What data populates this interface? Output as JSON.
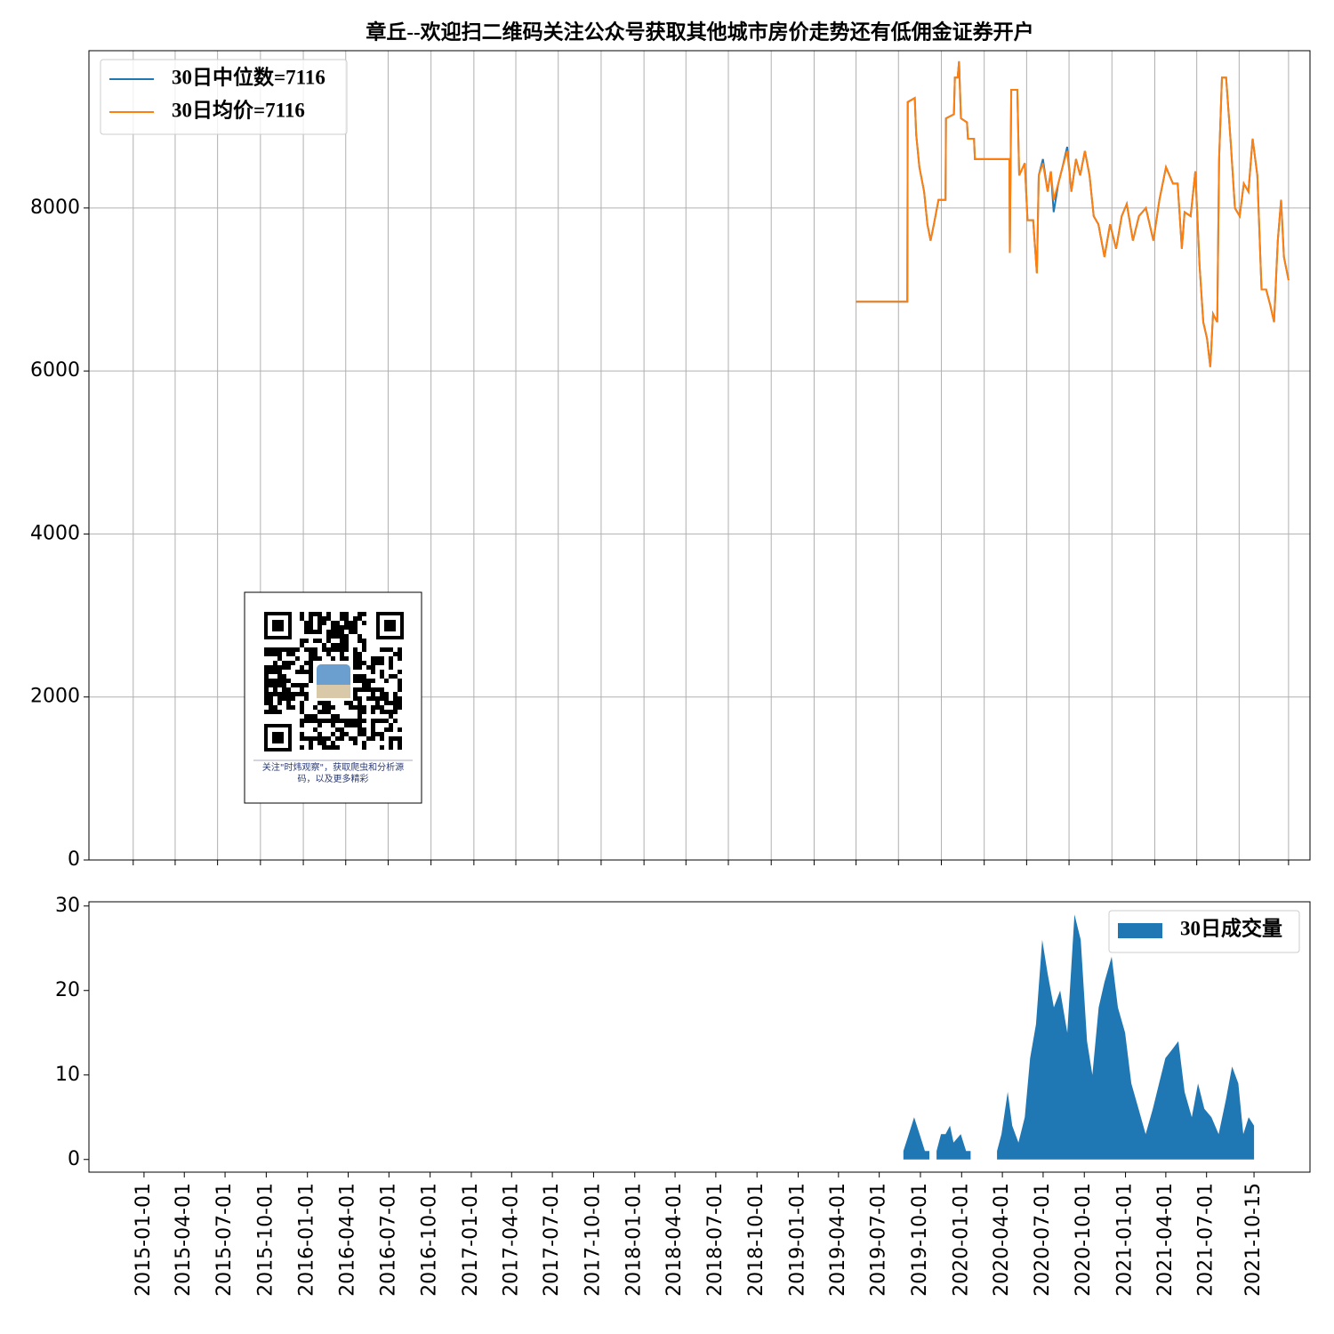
{
  "chart_data": [
    {
      "type": "line",
      "title": "章丘--欢迎扫二维码关注公众号获取其他城市房价走势还有低佣金证券开户",
      "annotation": "关注\"时炜观察\"，获取爬虫和分析源码，以及更多精彩",
      "x": [
        "2019-04-01",
        "2019-07-20",
        "2019-07-21",
        "2019-08-05",
        "2019-08-08",
        "2019-08-15",
        "2019-08-25",
        "2019-09-01",
        "2019-09-08",
        "2019-09-15",
        "2019-09-25",
        "2019-10-10",
        "2019-10-11",
        "2019-10-28",
        "2019-10-30",
        "2019-11-05",
        "2019-11-08",
        "2019-11-12",
        "2019-11-25",
        "2019-11-27",
        "2019-12-10",
        "2019-12-12",
        "2020-02-24",
        "2020-02-25",
        "2020-02-28",
        "2020-03-12",
        "2020-03-16",
        "2020-03-28",
        "2020-04-03",
        "2020-04-15",
        "2020-04-23",
        "2020-04-27",
        "2020-05-06",
        "2020-05-16",
        "2020-05-23",
        "2020-05-29",
        "2020-06-08",
        "2020-06-17",
        "2020-06-27",
        "2020-07-06",
        "2020-07-16",
        "2020-07-25",
        "2020-08-04",
        "2020-08-14",
        "2020-08-23",
        "2020-09-02",
        "2020-09-15",
        "2020-09-27",
        "2020-10-10",
        "2020-10-22",
        "2020-11-02",
        "2020-11-15",
        "2020-11-28",
        "2020-12-13",
        "2020-12-29",
        "2021-01-11",
        "2021-01-25",
        "2021-02-09",
        "2021-02-19",
        "2021-02-28",
        "2021-03-06",
        "2021-03-19",
        "2021-03-29",
        "2021-04-07",
        "2021-04-15",
        "2021-04-23",
        "2021-04-30",
        "2021-05-06",
        "2021-05-15",
        "2021-05-19",
        "2021-05-25",
        "2021-06-03",
        "2021-06-13",
        "2021-06-22",
        "2021-07-02",
        "2021-07-11",
        "2021-07-21",
        "2021-07-30",
        "2021-08-09",
        "2021-08-18",
        "2021-08-28",
        "2021-09-06",
        "2021-09-14",
        "2021-09-22",
        "2021-09-29",
        "2021-10-05",
        "2021-10-15"
      ],
      "series": [
        {
          "name": "30日中位数=7116",
          "color": "#1f77b4",
          "values": [
            6850,
            6850,
            9300,
            9350,
            8900,
            8500,
            8200,
            7800,
            7600,
            7800,
            8100,
            8100,
            9100,
            9150,
            9600,
            9600,
            9800,
            9100,
            9050,
            8850,
            8850,
            8600,
            8600,
            7450,
            9450,
            9450,
            8400,
            8550,
            7850,
            7850,
            7200,
            8400,
            8600,
            8200,
            8450,
            7950,
            8300,
            8500,
            8750,
            8200,
            8600,
            8400,
            8700,
            8400,
            7900,
            7800,
            7400,
            7800,
            7500,
            7900,
            8050,
            7600,
            7900,
            8000,
            7600,
            8100,
            8500,
            8300,
            8300,
            7500,
            7950,
            7900,
            8450,
            7300,
            6600,
            6400,
            6050,
            6700,
            6600,
            8600,
            9600,
            9600,
            8800,
            8000,
            7900,
            8300,
            8200,
            8850,
            8400,
            7000,
            7000,
            6800,
            6600,
            7600,
            8100,
            7400,
            7116
          ]
        },
        {
          "name": "30日均价=7116",
          "color": "#ff7f0e",
          "values": [
            6850,
            6850,
            9300,
            9350,
            8900,
            8500,
            8200,
            7800,
            7600,
            7800,
            8100,
            8100,
            9100,
            9150,
            9600,
            9600,
            9800,
            9100,
            9050,
            8850,
            8850,
            8600,
            8600,
            7450,
            9450,
            9450,
            8400,
            8550,
            7850,
            7850,
            7200,
            8400,
            8550,
            8200,
            8450,
            8100,
            8300,
            8500,
            8700,
            8200,
            8600,
            8400,
            8700,
            8400,
            7900,
            7800,
            7400,
            7800,
            7500,
            7900,
            8050,
            7600,
            7900,
            8000,
            7600,
            8100,
            8500,
            8300,
            8300,
            7500,
            7950,
            7900,
            8450,
            7300,
            6600,
            6400,
            6050,
            6700,
            6600,
            8600,
            9600,
            9600,
            8800,
            8000,
            7900,
            8300,
            8200,
            8850,
            8400,
            7000,
            7000,
            6800,
            6600,
            7600,
            8100,
            7400,
            7116
          ]
        }
      ],
      "xlim": [
        "2014-09-28",
        "2021-11-30"
      ],
      "xticks": [
        "2015-01-01",
        "2015-04-01",
        "2015-07-01",
        "2015-10-01",
        "2016-01-01",
        "2016-04-01",
        "2016-07-01",
        "2016-10-01",
        "2017-01-01",
        "2017-04-01",
        "2017-07-01",
        "2017-10-01",
        "2018-01-01",
        "2018-04-01",
        "2018-07-01",
        "2018-10-01",
        "2019-01-01",
        "2019-04-01",
        "2019-07-01",
        "2019-10-01",
        "2020-01-01",
        "2020-04-01",
        "2020-07-01",
        "2020-10-01",
        "2021-01-01",
        "2021-04-01",
        "2021-07-01",
        "2021-10-15"
      ],
      "xtick_labels": false,
      "ylim": [
        0,
        9930
      ],
      "yticks": [
        0,
        2000,
        4000,
        6000,
        8000
      ],
      "grid": true,
      "legend": "upper left"
    },
    {
      "type": "area",
      "x": [
        "2019-08-24",
        "2019-09-05",
        "2019-09-17",
        "2019-09-29",
        "2019-10-11",
        "2019-10-21",
        "2019-10-30",
        "2019-11-06",
        "2019-11-16",
        "2019-11-26",
        "2019-12-06",
        "2019-12-14",
        "2019-12-30",
        "2020-01-11",
        "2020-01-21",
        "2020-03-01",
        "2020-03-20",
        "2020-03-30",
        "2020-04-13",
        "2020-04-23",
        "2020-05-07",
        "2020-05-21",
        "2020-06-02",
        "2020-06-15",
        "2020-06-29",
        "2020-07-11",
        "2020-07-25",
        "2020-08-08",
        "2020-08-24",
        "2020-09-09",
        "2020-09-23",
        "2020-10-07",
        "2020-10-19",
        "2020-11-02",
        "2020-11-15",
        "2020-12-01",
        "2020-12-15",
        "2020-12-31",
        "2021-01-14",
        "2021-01-30",
        "2021-02-15",
        "2021-03-03",
        "2021-03-17",
        "2021-03-31",
        "2021-04-15",
        "2021-04-29",
        "2021-05-13",
        "2021-05-29",
        "2021-06-12",
        "2021-06-26",
        "2021-07-12",
        "2021-07-28",
        "2021-08-13",
        "2021-08-27",
        "2021-09-10",
        "2021-09-21",
        "2021-10-03",
        "2021-10-15"
      ],
      "series": [
        {
          "name": "30日成交量",
          "color": "#1f77b4",
          "values": [
            1,
            3,
            5,
            3,
            1,
            1,
            null,
            1,
            3,
            3,
            4,
            2,
            3,
            1,
            1,
            null,
            1,
            3,
            8,
            4,
            2,
            5,
            12,
            16,
            26,
            22,
            18,
            20,
            15,
            29,
            26,
            14,
            10,
            18,
            21,
            24,
            18,
            15,
            9,
            6,
            3,
            6,
            9,
            12,
            13,
            14,
            8,
            5,
            9,
            6,
            5,
            3,
            7,
            11,
            9,
            3,
            5,
            4
          ]
        }
      ],
      "xlim": [
        "2014-08-31",
        "2022-02-17"
      ],
      "xticks": [
        "2015-01-01",
        "2015-04-01",
        "2015-07-01",
        "2015-10-01",
        "2016-01-01",
        "2016-04-01",
        "2016-07-01",
        "2016-10-01",
        "2017-01-01",
        "2017-04-01",
        "2017-07-01",
        "2017-10-01",
        "2018-01-01",
        "2018-04-01",
        "2018-07-01",
        "2018-10-01",
        "2019-01-01",
        "2019-04-01",
        "2019-07-01",
        "2019-10-01",
        "2020-01-01",
        "2020-04-01",
        "2020-07-01",
        "2020-10-01",
        "2021-01-01",
        "2021-04-01",
        "2021-07-01",
        "2021-10-15"
      ],
      "xtick_labels": true,
      "ylim": [
        -1.5,
        30.5
      ],
      "yticks": [
        0,
        10,
        20,
        30
      ],
      "grid": false,
      "legend": "upper right"
    }
  ]
}
